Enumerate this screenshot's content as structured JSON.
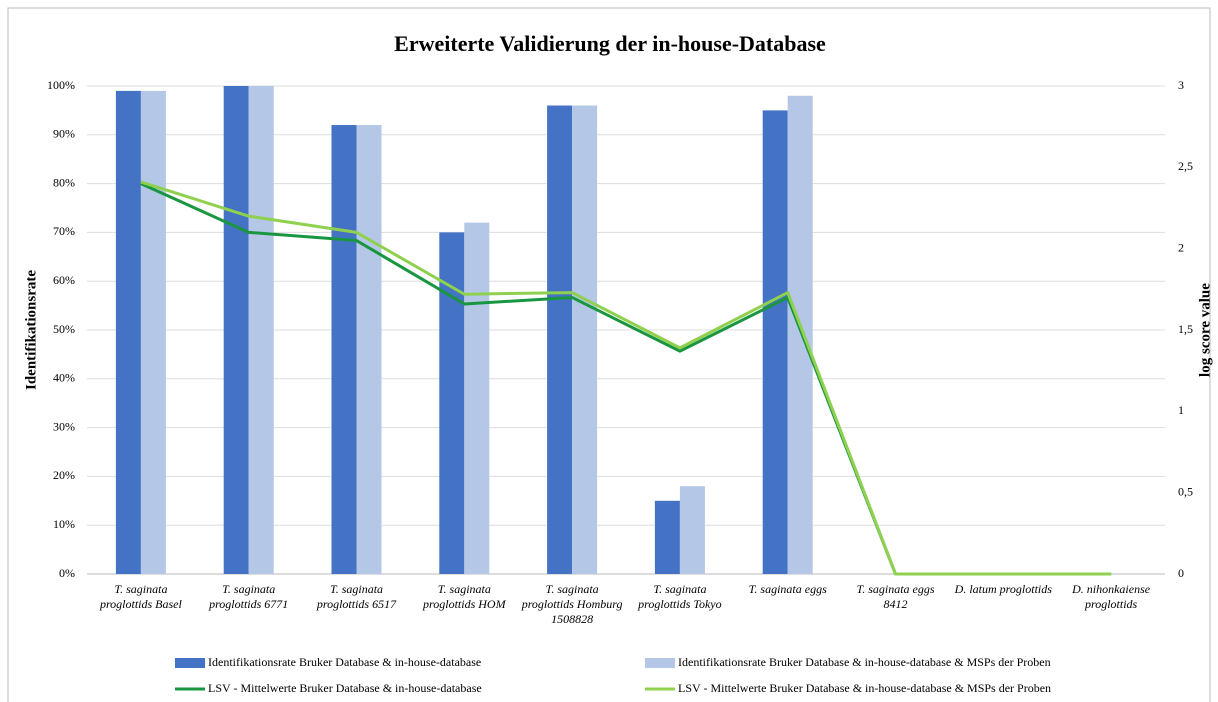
{
  "chart_data": {
    "type": "bar",
    "title": "Erweiterte Validierung der in-house-Database",
    "y_label": "Identifikationsrate",
    "y2_label": "log score value",
    "categories": [
      "T. saginata proglottids Basel",
      "T. saginata proglottids 6771",
      "T. saginata proglottids 6517",
      "T. saginata proglottids HOM",
      "T. saginata proglottids Homburg 1508828",
      "T. saginata proglottids Tokyo",
      "T. saginata eggs",
      "T. saginata eggs 8412",
      "D. latum proglottids",
      "D. nihonkaiense proglottids"
    ],
    "series": [
      {
        "name": "Identifikationsrate Bruker Database & in-house-database",
        "type": "bar",
        "color": "#4472c4",
        "values": [
          99,
          100,
          92,
          70,
          96,
          15,
          95,
          0,
          0,
          0
        ]
      },
      {
        "name": "Identifikationsrate Bruker Database & in-house-database & MSPs der Proben",
        "type": "bar",
        "color": "#b4c7e7",
        "values": [
          99,
          100,
          92,
          72,
          96,
          18,
          98,
          0,
          0,
          0
        ]
      },
      {
        "name": "LSV - Mittelwerte Bruker Database & in-house-database",
        "type": "line",
        "axis": "y2",
        "color": "#1a9641",
        "values": [
          2.4,
          2.1,
          2.05,
          1.66,
          1.7,
          1.37,
          1.7,
          0,
          0,
          0
        ]
      },
      {
        "name": "LSV - Mittelwerte Bruker Database & in-house-database & MSPs der Proben",
        "type": "line",
        "axis": "y2",
        "color": "#8fd14f",
        "values": [
          2.41,
          2.2,
          2.1,
          1.72,
          1.73,
          1.39,
          1.73,
          0,
          0,
          0
        ]
      }
    ],
    "ylim": [
      0,
      100
    ],
    "yticks": [
      {
        "value": 0,
        "label": "0%"
      },
      {
        "value": 10,
        "label": "10%"
      },
      {
        "value": 20,
        "label": "20%"
      },
      {
        "value": 30,
        "label": "30%"
      },
      {
        "value": 40,
        "label": "40%"
      },
      {
        "value": 50,
        "label": "50%"
      },
      {
        "value": 60,
        "label": "60%"
      },
      {
        "value": 70,
        "label": "70%"
      },
      {
        "value": 80,
        "label": "80%"
      },
      {
        "value": 90,
        "label": "90%"
      },
      {
        "value": 100,
        "label": "100%"
      }
    ],
    "y2lim": [
      0,
      3
    ],
    "y2ticks": [
      0,
      {
        "value": 0.5,
        "label": "0,5"
      },
      1,
      {
        "value": 1.5,
        "label": "1,5"
      },
      2,
      {
        "value": 2.5,
        "label": "2,5"
      },
      3
    ],
    "grid": true
  }
}
